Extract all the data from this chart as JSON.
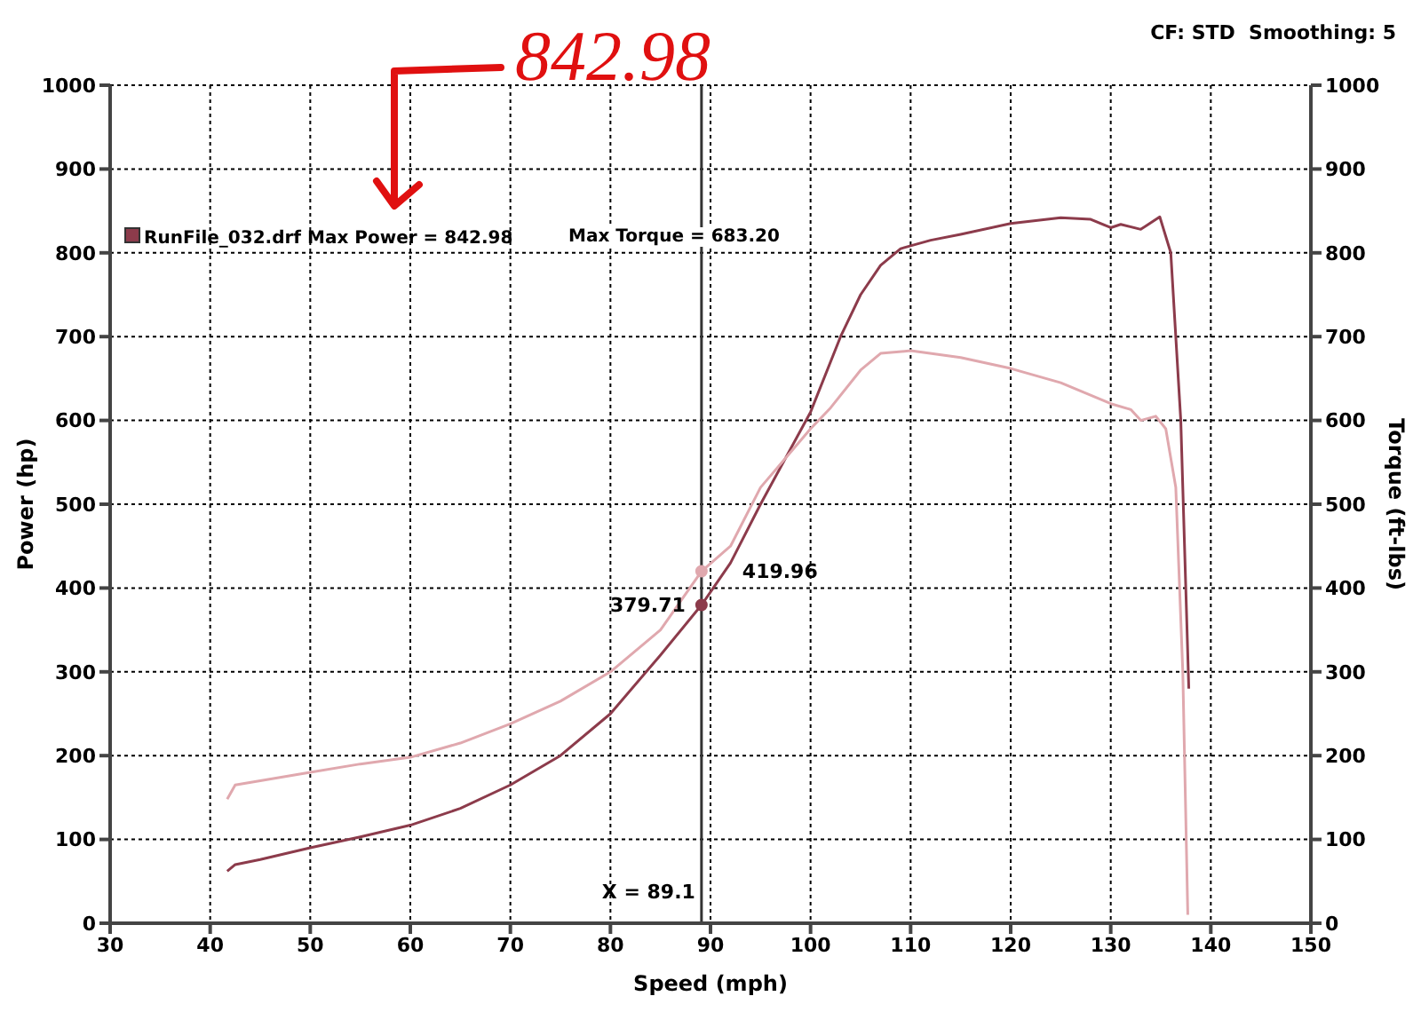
{
  "chart_data": {
    "type": "line",
    "xlabel": "Speed (mph)",
    "ylabel": "Power (hp)",
    "y2label": "Torque (ft-lbs)",
    "xlim": [
      30,
      150
    ],
    "xticks": [
      30,
      40,
      50,
      60,
      70,
      80,
      90,
      100,
      110,
      120,
      130,
      140,
      150
    ],
    "ylim": [
      0,
      1000
    ],
    "yticks": [
      0,
      100,
      200,
      300,
      400,
      500,
      600,
      700,
      800,
      900,
      1000
    ],
    "y2lim": [
      0,
      1000
    ],
    "y2ticks": [
      0,
      100,
      200,
      300,
      400,
      500,
      600,
      700,
      800,
      900,
      1000
    ],
    "grid": true,
    "marker": "none",
    "line_style": "solid",
    "series": [
      {
        "color": "#8c3b4b",
        "x": [
          41.7,
          42.5,
          45,
          50,
          55,
          60,
          65,
          70,
          75,
          80,
          85,
          89.1,
          92,
          95,
          100,
          103,
          105,
          107,
          109,
          112,
          115,
          120,
          125,
          128,
          130,
          131,
          133,
          134.9,
          136,
          137,
          137.5,
          137.8
        ],
        "values": [
          62,
          70,
          76,
          90,
          103,
          117,
          137,
          165,
          200,
          250,
          320,
          379.71,
          430,
          500,
          610,
          700,
          750,
          785,
          805,
          815,
          822,
          835,
          842,
          840,
          830,
          834,
          828,
          842.98,
          800,
          600,
          400,
          280
        ]
      },
      {
        "color": "#e0a8ae",
        "x": [
          41.7,
          42.5,
          45,
          50,
          55,
          60,
          65,
          70,
          75,
          80,
          85,
          89.1,
          92,
          95,
          100,
          102,
          105,
          107,
          110,
          115,
          120,
          125,
          130,
          132,
          133,
          134.5,
          135.5,
          136.5,
          137.2,
          137.7
        ],
        "values": [
          148,
          165,
          170,
          180,
          190,
          198,
          215,
          238,
          265,
          300,
          350,
          419.96,
          450,
          520,
          590,
          615,
          660,
          680,
          683.2,
          675,
          662,
          645,
          620,
          613,
          600,
          605,
          590,
          520,
          300,
          10
        ]
      }
    ],
    "ref_lines": [
      {
        "axis": "x",
        "value": 89.1,
        "label": "X = 89.1",
        "color": "#333333"
      }
    ],
    "annotations": [
      "CF: STD  Smoothing: 5",
      "RunFile_032.drf Max Power = 842.98",
      "Max Torque = 683.20",
      "842.98",
      {
        "text": "379.71",
        "x": 89.1,
        "y": 379.71
      },
      {
        "text": "419.96",
        "x": 89.1,
        "y": 419.96
      }
    ]
  }
}
